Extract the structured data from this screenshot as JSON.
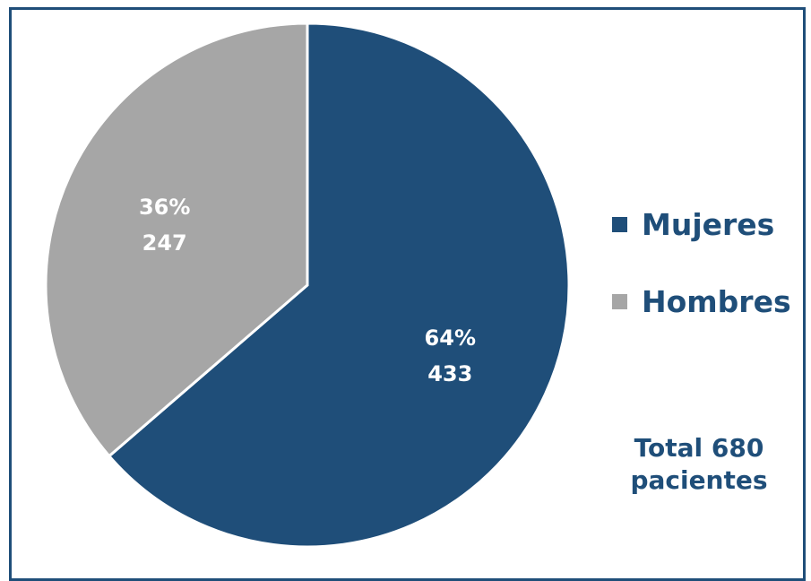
{
  "chart_data": {
    "type": "pie",
    "categories": [
      "Mujeres",
      "Hombres"
    ],
    "values": [
      433,
      247
    ],
    "percentages": [
      "64%",
      "36%"
    ],
    "value_labels": [
      "433",
      "247"
    ],
    "colors": [
      "#1f4e79",
      "#a6a6a6"
    ],
    "legend_position": "right",
    "annotation": [
      "Total 680",
      "pacientes"
    ]
  }
}
